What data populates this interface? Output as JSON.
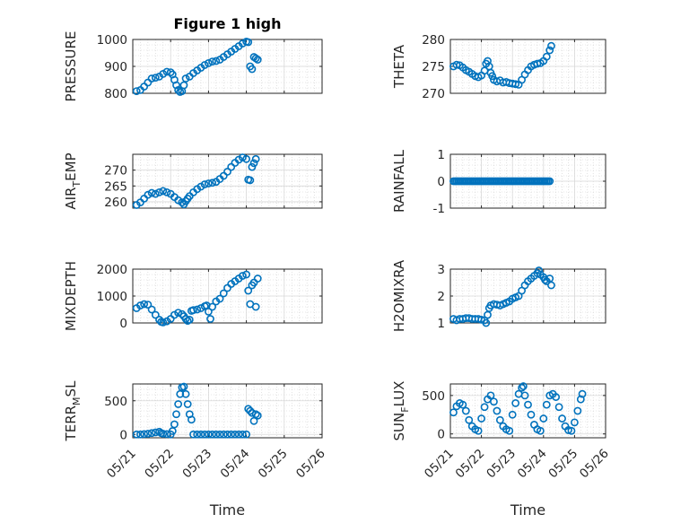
{
  "figure": {
    "title": "Figure 1 high"
  },
  "style": {
    "marker_color": "#0072BD",
    "grid": "on (major + minor)"
  },
  "x_ticks": [
    "05/21",
    "05/22",
    "05/23",
    "05/24",
    "05/25",
    "05/26"
  ],
  "chart_data": [
    {
      "type": "scatter",
      "id": "pressure",
      "title": "Figure 1 high",
      "ylabel": "PRESSURE",
      "xlabel": "",
      "xlim": [
        0,
        5
      ],
      "ylim": [
        800,
        1000
      ],
      "yticks": [
        "800",
        "900",
        "1000"
      ],
      "points": [
        [
          0.1,
          808
        ],
        [
          0.2,
          812
        ],
        [
          0.3,
          825
        ],
        [
          0.4,
          840
        ],
        [
          0.5,
          855
        ],
        [
          0.6,
          858
        ],
        [
          0.7,
          862
        ],
        [
          0.8,
          872
        ],
        [
          0.9,
          880
        ],
        [
          1.0,
          878
        ],
        [
          1.05,
          870
        ],
        [
          1.1,
          850
        ],
        [
          1.15,
          830
        ],
        [
          1.2,
          812
        ],
        [
          1.25,
          805
        ],
        [
          1.3,
          808
        ],
        [
          1.35,
          830
        ],
        [
          1.4,
          855
        ],
        [
          1.5,
          862
        ],
        [
          1.6,
          875
        ],
        [
          1.7,
          885
        ],
        [
          1.8,
          895
        ],
        [
          1.9,
          905
        ],
        [
          2.0,
          912
        ],
        [
          2.1,
          918
        ],
        [
          2.2,
          920
        ],
        [
          2.3,
          925
        ],
        [
          2.4,
          935
        ],
        [
          2.5,
          945
        ],
        [
          2.6,
          955
        ],
        [
          2.7,
          965
        ],
        [
          2.8,
          975
        ],
        [
          2.9,
          985
        ],
        [
          3.0,
          992
        ],
        [
          3.05,
          990
        ],
        [
          3.1,
          900
        ],
        [
          3.15,
          890
        ],
        [
          3.2,
          935
        ],
        [
          3.25,
          930
        ],
        [
          3.3,
          925
        ]
      ]
    },
    {
      "type": "scatter",
      "id": "theta",
      "ylabel": "THETA",
      "xlabel": "",
      "xlim": [
        0,
        5
      ],
      "ylim": [
        270,
        280
      ],
      "yticks": [
        "270",
        "275",
        "280"
      ],
      "points": [
        [
          0.1,
          275.0
        ],
        [
          0.2,
          275.3
        ],
        [
          0.3,
          275.2
        ],
        [
          0.4,
          274.8
        ],
        [
          0.5,
          274.3
        ],
        [
          0.6,
          274.0
        ],
        [
          0.7,
          273.6
        ],
        [
          0.8,
          273.2
        ],
        [
          0.9,
          273.0
        ],
        [
          1.0,
          273.3
        ],
        [
          1.1,
          274.2
        ],
        [
          1.15,
          275.5
        ],
        [
          1.2,
          276.0
        ],
        [
          1.25,
          275.0
        ],
        [
          1.3,
          273.8
        ],
        [
          1.35,
          273.2
        ],
        [
          1.4,
          272.5
        ],
        [
          1.5,
          272.2
        ],
        [
          1.6,
          272.4
        ],
        [
          1.7,
          272.0
        ],
        [
          1.8,
          272.1
        ],
        [
          1.9,
          271.9
        ],
        [
          2.0,
          271.8
        ],
        [
          2.1,
          271.7
        ],
        [
          2.2,
          271.6
        ],
        [
          2.3,
          272.5
        ],
        [
          2.4,
          273.5
        ],
        [
          2.5,
          274.3
        ],
        [
          2.6,
          275.0
        ],
        [
          2.7,
          275.3
        ],
        [
          2.8,
          275.5
        ],
        [
          2.9,
          275.6
        ],
        [
          3.0,
          276.0
        ],
        [
          3.1,
          276.8
        ],
        [
          3.2,
          278.0
        ],
        [
          3.25,
          278.8
        ]
      ]
    },
    {
      "type": "scatter",
      "id": "air_temp",
      "ylabel": "AIR_TEMP",
      "xlabel": "",
      "xlim": [
        0,
        5
      ],
      "ylim": [
        258,
        275
      ],
      "yticks": [
        "260",
        "265",
        "270"
      ],
      "points": [
        [
          0.1,
          259.0
        ],
        [
          0.2,
          259.8
        ],
        [
          0.3,
          261.0
        ],
        [
          0.4,
          262.2
        ],
        [
          0.5,
          262.8
        ],
        [
          0.6,
          262.5
        ],
        [
          0.7,
          263.0
        ],
        [
          0.8,
          263.4
        ],
        [
          0.9,
          263.0
        ],
        [
          1.0,
          262.5
        ],
        [
          1.1,
          261.5
        ],
        [
          1.2,
          260.5
        ],
        [
          1.3,
          259.8
        ],
        [
          1.35,
          259.2
        ],
        [
          1.4,
          260.2
        ],
        [
          1.45,
          261.0
        ],
        [
          1.5,
          261.8
        ],
        [
          1.6,
          263.0
        ],
        [
          1.7,
          264.0
        ],
        [
          1.8,
          264.8
        ],
        [
          1.9,
          265.5
        ],
        [
          2.0,
          265.8
        ],
        [
          2.1,
          266.0
        ],
        [
          2.2,
          266.3
        ],
        [
          2.3,
          267.2
        ],
        [
          2.4,
          268.2
        ],
        [
          2.5,
          269.5
        ],
        [
          2.6,
          271.0
        ],
        [
          2.7,
          272.3
        ],
        [
          2.8,
          273.3
        ],
        [
          2.9,
          274.0
        ],
        [
          3.0,
          273.5
        ],
        [
          3.05,
          267.0
        ],
        [
          3.1,
          266.8
        ],
        [
          3.15,
          271.0
        ],
        [
          3.2,
          272.2
        ],
        [
          3.25,
          273.5
        ]
      ]
    },
    {
      "type": "scatter",
      "id": "rainfall",
      "ylabel": "RAINFALL",
      "xlabel": "",
      "xlim": [
        0,
        5
      ],
      "ylim": [
        -1,
        1
      ],
      "yticks": [
        "-1",
        "0",
        "1"
      ],
      "x_range_constant": {
        "from": 0.1,
        "to": 3.2,
        "count": 60,
        "value": 0
      }
    },
    {
      "type": "scatter",
      "id": "mixdepth",
      "ylabel": "MIXDEPTH",
      "xlabel": "",
      "xlim": [
        0,
        5
      ],
      "ylim": [
        0,
        2000
      ],
      "yticks": [
        "0",
        "1000",
        "2000"
      ],
      "points": [
        [
          0.1,
          550
        ],
        [
          0.2,
          650
        ],
        [
          0.3,
          700
        ],
        [
          0.4,
          680
        ],
        [
          0.5,
          500
        ],
        [
          0.6,
          300
        ],
        [
          0.7,
          120
        ],
        [
          0.75,
          40
        ],
        [
          0.8,
          20
        ],
        [
          0.9,
          60
        ],
        [
          1.0,
          150
        ],
        [
          1.1,
          300
        ],
        [
          1.2,
          380
        ],
        [
          1.3,
          330
        ],
        [
          1.35,
          250
        ],
        [
          1.4,
          150
        ],
        [
          1.45,
          80
        ],
        [
          1.5,
          120
        ],
        [
          1.55,
          450
        ],
        [
          1.6,
          480
        ],
        [
          1.7,
          500
        ],
        [
          1.8,
          550
        ],
        [
          1.9,
          620
        ],
        [
          1.95,
          650
        ],
        [
          2.0,
          420
        ],
        [
          2.05,
          150
        ],
        [
          2.1,
          600
        ],
        [
          2.2,
          800
        ],
        [
          2.3,
          900
        ],
        [
          2.4,
          1100
        ],
        [
          2.5,
          1300
        ],
        [
          2.6,
          1450
        ],
        [
          2.7,
          1550
        ],
        [
          2.8,
          1650
        ],
        [
          2.9,
          1750
        ],
        [
          3.0,
          1800
        ],
        [
          3.05,
          1200
        ],
        [
          3.1,
          700
        ],
        [
          3.15,
          1400
        ],
        [
          3.2,
          1500
        ],
        [
          3.25,
          600
        ],
        [
          3.3,
          1650
        ]
      ]
    },
    {
      "type": "scatter",
      "id": "h2omixra",
      "ylabel": "H2OMIXRA",
      "xlabel": "",
      "xlim": [
        0,
        5
      ],
      "ylim": [
        1,
        3
      ],
      "yticks": [
        "1",
        "2",
        "3"
      ],
      "points": [
        [
          0.1,
          1.15
        ],
        [
          0.2,
          1.1
        ],
        [
          0.3,
          1.15
        ],
        [
          0.4,
          1.15
        ],
        [
          0.5,
          1.18
        ],
        [
          0.6,
          1.18
        ],
        [
          0.7,
          1.15
        ],
        [
          0.8,
          1.15
        ],
        [
          0.9,
          1.15
        ],
        [
          1.0,
          1.12
        ],
        [
          1.1,
          1.1
        ],
        [
          1.15,
          1.0
        ],
        [
          1.2,
          1.3
        ],
        [
          1.25,
          1.55
        ],
        [
          1.3,
          1.65
        ],
        [
          1.4,
          1.7
        ],
        [
          1.5,
          1.68
        ],
        [
          1.6,
          1.65
        ],
        [
          1.7,
          1.7
        ],
        [
          1.8,
          1.75
        ],
        [
          1.9,
          1.8
        ],
        [
          2.0,
          1.9
        ],
        [
          2.1,
          1.95
        ],
        [
          2.2,
          2.0
        ],
        [
          2.3,
          2.2
        ],
        [
          2.4,
          2.4
        ],
        [
          2.5,
          2.55
        ],
        [
          2.6,
          2.65
        ],
        [
          2.7,
          2.75
        ],
        [
          2.8,
          2.85
        ],
        [
          2.85,
          2.95
        ],
        [
          2.9,
          2.8
        ],
        [
          3.0,
          2.7
        ],
        [
          3.05,
          2.6
        ],
        [
          3.1,
          2.55
        ],
        [
          3.2,
          2.65
        ],
        [
          3.25,
          2.4
        ]
      ]
    },
    {
      "type": "scatter",
      "id": "terr_msl",
      "ylabel": "TERR_MSL",
      "xlabel": "Time",
      "xlim": [
        0,
        5
      ],
      "ylim": [
        -50,
        750
      ],
      "yticks": [
        "0",
        "500"
      ],
      "points": [
        [
          0.1,
          0
        ],
        [
          0.2,
          0
        ],
        [
          0.3,
          5
        ],
        [
          0.4,
          10
        ],
        [
          0.5,
          20
        ],
        [
          0.6,
          30
        ],
        [
          0.7,
          40
        ],
        [
          0.75,
          20
        ],
        [
          0.8,
          10
        ],
        [
          0.9,
          5
        ],
        [
          1.0,
          0
        ],
        [
          1.05,
          50
        ],
        [
          1.1,
          150
        ],
        [
          1.15,
          300
        ],
        [
          1.2,
          450
        ],
        [
          1.25,
          600
        ],
        [
          1.3,
          700
        ],
        [
          1.35,
          710
        ],
        [
          1.4,
          600
        ],
        [
          1.45,
          450
        ],
        [
          1.5,
          300
        ],
        [
          1.55,
          220
        ],
        [
          1.6,
          0
        ],
        [
          1.7,
          0
        ],
        [
          1.8,
          0
        ],
        [
          1.9,
          0
        ],
        [
          2.0,
          0
        ],
        [
          2.1,
          0
        ],
        [
          2.2,
          0
        ],
        [
          2.3,
          0
        ],
        [
          2.4,
          0
        ],
        [
          2.5,
          0
        ],
        [
          2.6,
          0
        ],
        [
          2.7,
          0
        ],
        [
          2.8,
          0
        ],
        [
          2.9,
          0
        ],
        [
          3.0,
          0
        ],
        [
          3.05,
          380
        ],
        [
          3.1,
          350
        ],
        [
          3.15,
          320
        ],
        [
          3.2,
          200
        ],
        [
          3.25,
          300
        ],
        [
          3.3,
          280
        ]
      ]
    },
    {
      "type": "scatter",
      "id": "sun_flux",
      "ylabel": "SUN_FLUX",
      "xlabel": "Time",
      "xlim": [
        0,
        5
      ],
      "ylim": [
        -50,
        650
      ],
      "yticks": [
        "0",
        "500"
      ],
      "points": [
        [
          0.1,
          280
        ],
        [
          0.2,
          360
        ],
        [
          0.3,
          400
        ],
        [
          0.4,
          380
        ],
        [
          0.5,
          300
        ],
        [
          0.6,
          180
        ],
        [
          0.7,
          100
        ],
        [
          0.8,
          60
        ],
        [
          0.9,
          40
        ],
        [
          1.0,
          200
        ],
        [
          1.1,
          350
        ],
        [
          1.2,
          450
        ],
        [
          1.3,
          500
        ],
        [
          1.4,
          420
        ],
        [
          1.5,
          300
        ],
        [
          1.6,
          180
        ],
        [
          1.7,
          100
        ],
        [
          1.8,
          60
        ],
        [
          1.9,
          40
        ],
        [
          2.0,
          250
        ],
        [
          2.1,
          400
        ],
        [
          2.2,
          520
        ],
        [
          2.3,
          600
        ],
        [
          2.35,
          620
        ],
        [
          2.4,
          500
        ],
        [
          2.5,
          380
        ],
        [
          2.6,
          250
        ],
        [
          2.7,
          120
        ],
        [
          2.8,
          60
        ],
        [
          2.9,
          40
        ],
        [
          3.0,
          200
        ],
        [
          3.1,
          380
        ],
        [
          3.2,
          500
        ],
        [
          3.3,
          520
        ],
        [
          3.4,
          480
        ],
        [
          3.5,
          350
        ],
        [
          3.6,
          200
        ],
        [
          3.7,
          100
        ],
        [
          3.8,
          50
        ],
        [
          3.9,
          40
        ],
        [
          4.0,
          150
        ],
        [
          4.1,
          300
        ],
        [
          4.2,
          450
        ],
        [
          4.25,
          520
        ]
      ]
    }
  ]
}
